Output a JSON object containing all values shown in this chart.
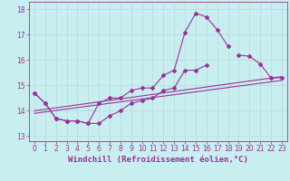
{
  "xlabel": "Windchill (Refroidissement éolien,°C)",
  "bg_color": "#c8eef0",
  "line_color": "#993399",
  "grid_color": "#b8dde0",
  "xlim": [
    -0.5,
    23.5
  ],
  "ylim": [
    12.8,
    18.3
  ],
  "xticks": [
    0,
    1,
    2,
    3,
    4,
    5,
    6,
    7,
    8,
    9,
    10,
    11,
    12,
    13,
    14,
    15,
    16,
    17,
    18,
    19,
    20,
    21,
    22,
    23
  ],
  "yticks": [
    13,
    14,
    15,
    16,
    17,
    18
  ],
  "series": [
    {
      "x": [
        0,
        1,
        2,
        3,
        4,
        5,
        6,
        7,
        8,
        9,
        10,
        11,
        12,
        13,
        14,
        15,
        16,
        17,
        18,
        19,
        20,
        21,
        22,
        23
      ],
      "y": [
        14.7,
        14.3,
        13.7,
        13.6,
        13.6,
        13.5,
        14.3,
        14.5,
        14.5,
        14.8,
        14.9,
        14.9,
        15.4,
        15.6,
        17.1,
        17.85,
        17.7,
        17.2,
        16.55,
        null,
        null,
        null,
        15.3,
        null
      ],
      "has_marker": true
    },
    {
      "x": [
        0,
        1,
        2,
        3,
        4,
        5,
        6,
        7,
        8,
        9,
        10,
        11,
        12,
        13,
        14,
        15,
        16,
        17,
        18,
        19,
        20,
        21,
        22,
        23
      ],
      "y": [
        14.7,
        14.3,
        13.7,
        13.6,
        13.6,
        13.5,
        13.5,
        13.8,
        14.0,
        14.3,
        14.4,
        14.5,
        14.8,
        14.9,
        15.6,
        15.6,
        15.8,
        null,
        null,
        16.2,
        16.15,
        15.85,
        15.3,
        15.3
      ],
      "has_marker": true
    },
    {
      "x": [
        0,
        23
      ],
      "y": [
        13.9,
        15.2
      ],
      "has_marker": false
    },
    {
      "x": [
        0,
        23
      ],
      "y": [
        14.0,
        15.35
      ],
      "has_marker": false
    }
  ],
  "tick_fontsize": 5.5,
  "xlabel_fontsize": 6.5,
  "marker": "D",
  "markersize": 2.0,
  "linewidth": 0.8
}
